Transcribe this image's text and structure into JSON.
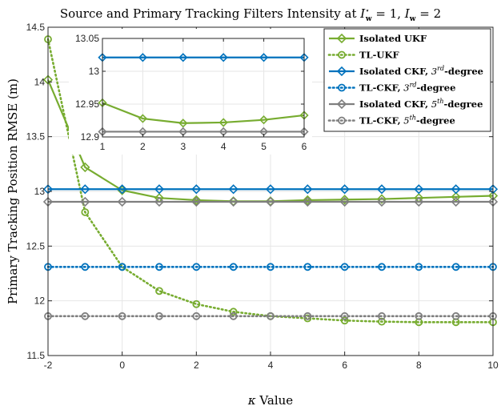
{
  "chart_data": {
    "type": "line",
    "title": "Source and Primary Tracking Filters Intensity at",
    "title_math": {
      "part1_sym": "I",
      "part1_sup": "⋆",
      "part1_sub": "w",
      "part1_val": "= 1,",
      "part2_sym": "I",
      "part2_sub": "w",
      "part2_val": "= 2"
    },
    "xlabel_sym": "κ",
    "xlabel": "Value",
    "ylabel": "Primary Tracking Position RMSE (m)",
    "xlim": [
      -2,
      10
    ],
    "ylim": [
      11.5,
      14.5
    ],
    "xticks": [
      -2,
      0,
      2,
      4,
      6,
      8,
      10
    ],
    "yticks": [
      11.5,
      12,
      12.5,
      13,
      13.5,
      14,
      14.5
    ],
    "xtick_labels": [
      "-2",
      "0",
      "2",
      "4",
      "6",
      "8",
      "10"
    ],
    "ytick_labels": [
      "11.5",
      "12",
      "12.5",
      "13",
      "13.5",
      "14",
      "14.5"
    ],
    "grid": true,
    "legend_position": "top-right",
    "x": [
      -2,
      -1,
      0,
      1,
      2,
      3,
      4,
      5,
      6,
      7,
      8,
      9,
      10
    ],
    "series": [
      {
        "name": "Isolated UKF",
        "color": "#77ac30",
        "dash": "solid",
        "marker": "diamond",
        "values": [
          14.02,
          13.22,
          13.01,
          12.94,
          12.92,
          12.91,
          12.91,
          12.92,
          12.925,
          12.93,
          12.94,
          12.95,
          12.96
        ]
      },
      {
        "name": "TL-UKF",
        "color": "#77ac30",
        "dash": "dotted",
        "marker": "circle",
        "values": [
          14.39,
          12.81,
          12.31,
          12.09,
          11.97,
          11.9,
          11.86,
          11.84,
          11.82,
          11.81,
          11.805,
          11.805,
          11.805
        ]
      },
      {
        "name": "Isolated CKF,",
        "sup": "rd",
        "ord": "3",
        "color": "#0072bd",
        "dash": "solid",
        "marker": "diamond",
        "values": [
          13.02,
          13.02,
          13.02,
          13.02,
          13.02,
          13.02,
          13.02,
          13.02,
          13.02,
          13.02,
          13.02,
          13.02,
          13.02
        ]
      },
      {
        "name": "TL-CKF,",
        "sup": "rd",
        "ord": "3",
        "color": "#0072bd",
        "dash": "dotted",
        "marker": "circle",
        "values": [
          12.31,
          12.31,
          12.31,
          12.31,
          12.31,
          12.31,
          12.31,
          12.31,
          12.31,
          12.31,
          12.31,
          12.31,
          12.31
        ]
      },
      {
        "name": "Isolated CKF,",
        "sup": "th",
        "ord": "5",
        "color": "#7f7f7f",
        "dash": "solid",
        "marker": "diamond",
        "values": [
          12.905,
          12.905,
          12.905,
          12.905,
          12.905,
          12.905,
          12.905,
          12.905,
          12.905,
          12.905,
          12.905,
          12.905,
          12.905
        ]
      },
      {
        "name": "TL-CKF,",
        "sup": "th",
        "ord": "5",
        "color": "#7f7f7f",
        "dash": "dotted",
        "marker": "circle",
        "values": [
          11.86,
          11.86,
          11.86,
          11.86,
          11.86,
          11.86,
          11.86,
          11.86,
          11.86,
          11.86,
          11.86,
          11.86,
          11.86
        ]
      }
    ],
    "legend_suffix": "-degree",
    "inset": {
      "xlim": [
        1,
        6
      ],
      "ylim": [
        12.9,
        13.05
      ],
      "xticks": [
        1,
        2,
        3,
        4,
        5,
        6
      ],
      "yticks": [
        12.9,
        12.95,
        13,
        13.05
      ],
      "xtick_labels": [
        "1",
        "2",
        "3",
        "4",
        "5",
        "6"
      ],
      "ytick_labels": [
        "12.9",
        "12.95",
        "13",
        "13.05"
      ],
      "grid": true,
      "x": [
        1,
        2,
        3,
        4,
        5,
        6
      ],
      "series": [
        {
          "color": "#77ac30",
          "marker": "diamond",
          "values": [
            12.952,
            12.928,
            12.921,
            12.922,
            12.926,
            12.933
          ]
        },
        {
          "color": "#0072bd",
          "marker": "diamond",
          "values": [
            13.021,
            13.021,
            13.021,
            13.021,
            13.021,
            13.021
          ]
        },
        {
          "color": "#7f7f7f",
          "marker": "diamond",
          "values": [
            12.908,
            12.908,
            12.908,
            12.908,
            12.908,
            12.908
          ]
        }
      ]
    }
  }
}
